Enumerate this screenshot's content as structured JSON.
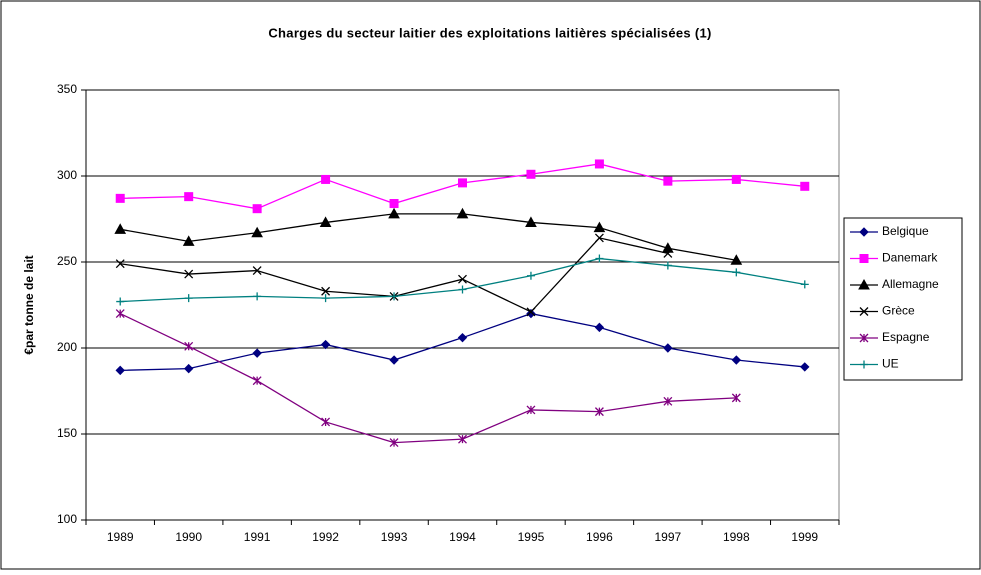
{
  "chart_data": {
    "type": "line",
    "title": "Charges du secteur laitier des exploitations laitières spécialisées (1)",
    "y_label": "€par tonne de lait",
    "categories": [
      "1989",
      "1990",
      "1991",
      "1992",
      "1993",
      "1994",
      "1995",
      "1996",
      "1997",
      "1998",
      "1999"
    ],
    "series": [
      {
        "name": "Belgique",
        "color": "#000080",
        "marker": "diamond",
        "values": [
          187,
          188,
          197,
          202,
          193,
          206,
          220,
          212,
          200,
          193,
          189
        ]
      },
      {
        "name": "Danemark",
        "color": "#ff00ff",
        "marker": "square",
        "values": [
          287,
          288,
          281,
          298,
          284,
          296,
          301,
          307,
          297,
          298,
          294
        ]
      },
      {
        "name": "Allemagne",
        "color": "#000000",
        "marker": "triangle",
        "values": [
          269,
          262,
          267,
          273,
          278,
          278,
          273,
          270,
          258,
          251,
          null
        ]
      },
      {
        "name": "Grèce",
        "color": "#000000",
        "marker": "x",
        "values": [
          249,
          243,
          245,
          233,
          230,
          240,
          221,
          264,
          255,
          null,
          null
        ]
      },
      {
        "name": "Espagne",
        "color": "#800080",
        "marker": "asterisk",
        "values": [
          220,
          201,
          181,
          157,
          145,
          147,
          164,
          163,
          169,
          171,
          null
        ]
      },
      {
        "name": "UE",
        "color": "#008080",
        "marker": "plus",
        "values": [
          227,
          229,
          230,
          229,
          230,
          234,
          242,
          252,
          248,
          244,
          237
        ]
      }
    ],
    "ylim": [
      100,
      350
    ],
    "yticks": [
      100,
      150,
      200,
      250,
      300,
      350
    ],
    "grid": true,
    "legend": "right"
  }
}
